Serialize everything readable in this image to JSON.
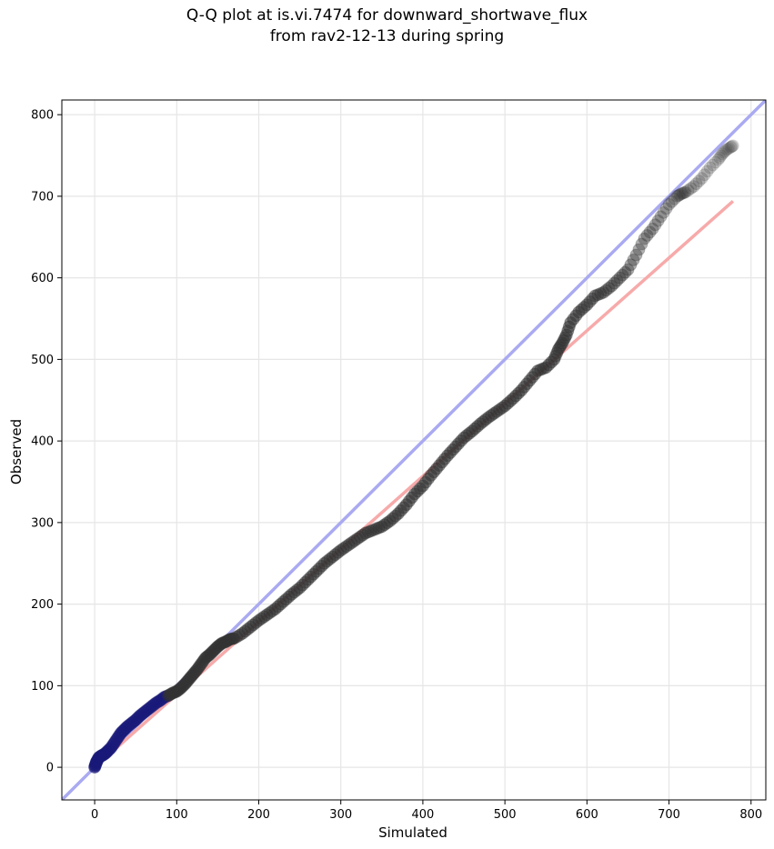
{
  "figure": {
    "title_line1": "Q-Q plot at is.vi.7474 for downward_shortwave_flux",
    "title_line2": "from rav2-12-13 during spring"
  },
  "chart_data": {
    "type": "scatter",
    "title": "Q-Q plot at is.vi.7474 for downward_shortwave_flux\nfrom rav2-12-13 during spring",
    "xlabel": "Simulated",
    "ylabel": "Observed",
    "xlim": [
      -40,
      818
    ],
    "ylim": [
      -40,
      818
    ],
    "xticks": [
      0,
      100,
      200,
      300,
      400,
      500,
      600,
      700,
      800
    ],
    "yticks": [
      0,
      100,
      200,
      300,
      400,
      500,
      600,
      700,
      800
    ],
    "grid": true,
    "colors": {
      "points": "#333333",
      "low_points": "#1a1a7a",
      "identity_line": "#aaaaf2",
      "fit_line": "#f7aaaa"
    },
    "reference_lines": [
      {
        "kind": "identity",
        "x": [
          -40,
          818
        ],
        "y": [
          -40,
          818
        ]
      },
      {
        "kind": "fit",
        "x": [
          0,
          778
        ],
        "y": [
          0,
          694
        ]
      }
    ],
    "series": [
      {
        "x": [
          0,
          1,
          2,
          3,
          5,
          8,
          10,
          13,
          16,
          20,
          24,
          28,
          32,
          36,
          40,
          45,
          50,
          55,
          60,
          65,
          70,
          75,
          80,
          85,
          90,
          95,
          100,
          105,
          110,
          115,
          120,
          125,
          130,
          135,
          140,
          145,
          150,
          155,
          160,
          165,
          170,
          180,
          190,
          200,
          210,
          220,
          230,
          240,
          250,
          260,
          270,
          280,
          290,
          300,
          310,
          320,
          330,
          340,
          350,
          360,
          370,
          380,
          390,
          400,
          410,
          420,
          430,
          440,
          450,
          460,
          470,
          480,
          490,
          500,
          510,
          520,
          530,
          540,
          550,
          560,
          565,
          570,
          575,
          580,
          590,
          600,
          610,
          620,
          630,
          640,
          650,
          660,
          670,
          680,
          690,
          700,
          710,
          715,
          720,
          730,
          740,
          750,
          760,
          765,
          770,
          775,
          778
        ],
        "y": [
          0,
          3,
          6,
          8,
          12,
          14,
          15,
          17,
          20,
          24,
          30,
          36,
          42,
          46,
          50,
          54,
          58,
          63,
          67,
          71,
          75,
          79,
          82,
          86,
          88,
          91,
          93,
          97,
          102,
          108,
          114,
          120,
          127,
          134,
          138,
          143,
          148,
          152,
          154,
          157,
          158,
          164,
          172,
          180,
          187,
          194,
          203,
          212,
          220,
          230,
          240,
          250,
          258,
          266,
          273,
          280,
          287,
          291,
          295,
          302,
          311,
          322,
          335,
          345,
          358,
          370,
          382,
          393,
          404,
          412,
          421,
          429,
          436,
          443,
          452,
          462,
          474,
          486,
          490,
          500,
          512,
          520,
          530,
          545,
          558,
          567,
          578,
          582,
          590,
          600,
          610,
          628,
          648,
          660,
          675,
          690,
          700,
          703,
          705,
          712,
          722,
          735,
          745,
          752,
          757,
          760,
          762
        ]
      }
    ]
  }
}
